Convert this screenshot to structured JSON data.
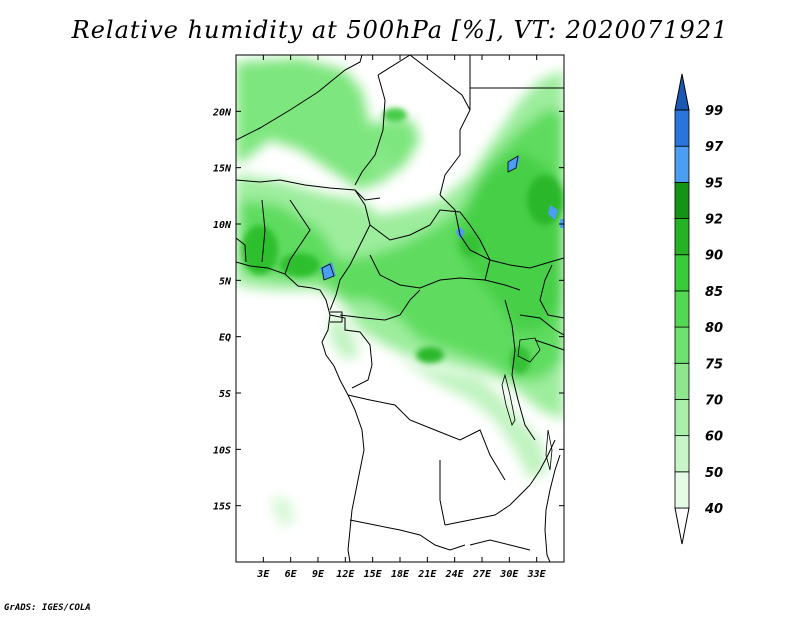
{
  "title": "Relative humidity at 500hPa [%], VT: 2020071921",
  "credit": "GrADS: IGES/COLA",
  "map": {
    "lon_range": [
      0,
      36
    ],
    "lat_range": [
      -20,
      25
    ],
    "lon_ticks": [
      3,
      6,
      9,
      12,
      15,
      18,
      21,
      24,
      27,
      30,
      33
    ],
    "lon_labels": [
      "3E",
      "6E",
      "9E",
      "12E",
      "15E",
      "18E",
      "21E",
      "24E",
      "27E",
      "30E",
      "33E"
    ],
    "lat_ticks": [
      20,
      15,
      10,
      5,
      0,
      -5,
      -10,
      -15
    ],
    "lat_labels": [
      "20N",
      "15N",
      "10N",
      "5N",
      "EQ",
      "5S",
      "10S",
      "15S"
    ]
  },
  "colorbar": {
    "levels": [
      "40",
      "50",
      "60",
      "70",
      "75",
      "80",
      "85",
      "90",
      "92",
      "95",
      "97",
      "99"
    ],
    "colors": [
      "#e6fbe6",
      "#c8f5c8",
      "#aaefaa",
      "#8de88d",
      "#6fe16f",
      "#52d852",
      "#3acb3a",
      "#25b325",
      "#149414",
      "#4b9ef2",
      "#2a75dc",
      "#1b58b4"
    ]
  },
  "chart_data": {
    "type": "heatmap",
    "title": "Relative humidity at 500hPa [%], VT: 2020071921",
    "xlabel": "",
    "ylabel": "",
    "xlim": [
      0,
      36
    ],
    "ylim": [
      -20,
      25
    ],
    "units": "%",
    "levels": [
      40,
      50,
      60,
      70,
      75,
      80,
      85,
      90,
      92,
      95,
      97,
      99
    ]
  }
}
